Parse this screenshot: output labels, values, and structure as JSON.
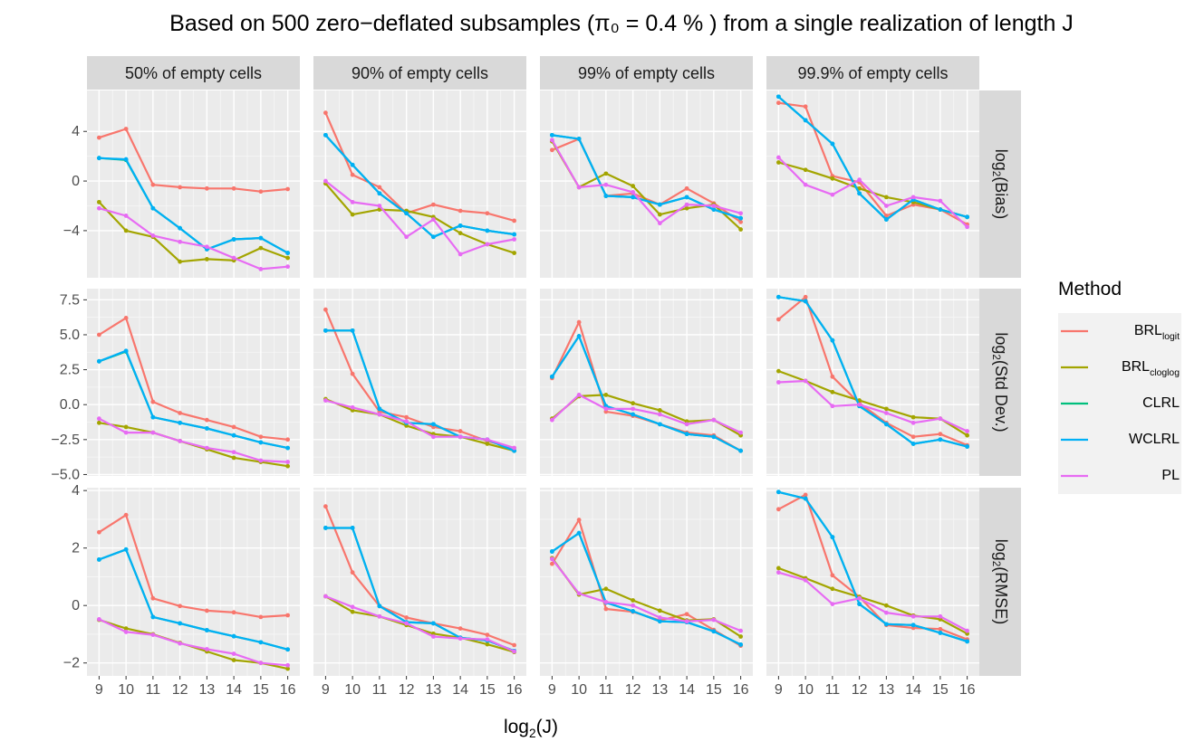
{
  "chart_data": {
    "type": "line",
    "title": "Based on 500 zero−deflated subsamples (π₀ = 0.4 % ) from a single realization of length J",
    "xlabel": "log₂(J)",
    "x": [
      9,
      10,
      11,
      12,
      13,
      14,
      15,
      16
    ],
    "columns": [
      "50% of empty cells",
      "90% of empty cells",
      "99% of empty cells",
      "99.9% of empty cells"
    ],
    "rows": [
      {
        "key": "bias",
        "label": "log₂(Bias)",
        "ylim": [
          -7.8,
          7.3
        ],
        "ticks": [
          4,
          0,
          -4
        ],
        "tick_labels": [
          "4",
          "0",
          "−4"
        ]
      },
      {
        "key": "sd",
        "label": "log₂(Std Dev.)",
        "ylim": [
          -5.1,
          8.3
        ],
        "ticks": [
          7.5,
          5.0,
          2.5,
          0.0,
          -2.5,
          -5.0
        ],
        "tick_labels": [
          "7.5",
          "5.0",
          "2.5",
          "0.0",
          "−2.5",
          "−5.0"
        ]
      },
      {
        "key": "rmse",
        "label": "log₂(RMSE)",
        "ylim": [
          -2.45,
          4.1
        ],
        "ticks": [
          4,
          2,
          0,
          -2
        ],
        "tick_labels": [
          "4",
          "2",
          "0",
          "−2"
        ]
      }
    ],
    "legend": {
      "title": "Method",
      "position": "right"
    },
    "methods": [
      {
        "name": "BRL",
        "sub": "logit",
        "color": "#F8766D"
      },
      {
        "name": "BRL",
        "sub": "cloglog",
        "color": "#A3A500"
      },
      {
        "name": "CLRL",
        "sub": "",
        "color": "#00BF7D"
      },
      {
        "name": "WCLRL",
        "sub": "",
        "color": "#00B0F6"
      },
      {
        "name": "PL",
        "sub": "",
        "color": "#E76BF3"
      }
    ],
    "grid": true,
    "series": {
      "bias": [
        [
          [
            3.5,
            4.2,
            -0.3,
            -0.5,
            -0.6,
            -0.6,
            -0.85,
            -0.65
          ],
          [
            -1.7,
            -4.0,
            -4.5,
            -6.5,
            -6.3,
            -6.4,
            -5.4,
            -6.2
          ],
          [
            1.85,
            1.7,
            -2.2,
            -3.8,
            -5.5,
            -4.7,
            -4.6,
            -5.8
          ],
          [
            1.85,
            1.75,
            -2.2,
            -3.8,
            -5.5,
            -4.7,
            -4.6,
            -5.8
          ],
          [
            -2.2,
            -2.8,
            -4.4,
            -4.9,
            -5.3,
            -6.2,
            -7.1,
            -6.9
          ]
        ],
        [
          [
            5.5,
            0.5,
            -0.5,
            -2.6,
            -1.9,
            -2.4,
            -2.6,
            -3.2
          ],
          [
            -0.2,
            -2.7,
            -2.3,
            -2.4,
            -2.9,
            -4.2,
            -5.1,
            -5.8
          ],
          [
            3.7,
            1.3,
            -1.0,
            -2.6,
            -4.5,
            -3.6,
            -4.0,
            -4.3
          ],
          [
            3.7,
            1.3,
            -1.0,
            -2.6,
            -4.5,
            -3.6,
            -4.0,
            -4.3
          ],
          [
            0.0,
            -1.7,
            -2.0,
            -4.5,
            -3.1,
            -5.9,
            -5.1,
            -4.7
          ]
        ],
        [
          [
            2.5,
            3.4,
            -1.2,
            -1.0,
            -1.9,
            -0.6,
            -1.8,
            -3.3
          ],
          [
            3.2,
            -0.5,
            0.6,
            -0.4,
            -2.7,
            -2.2,
            -1.9,
            -3.9
          ],
          [
            3.7,
            3.4,
            -1.2,
            -1.3,
            -1.9,
            -1.3,
            -2.3,
            -3.0
          ],
          [
            3.7,
            3.4,
            -1.2,
            -1.3,
            -1.9,
            -1.3,
            -2.3,
            -3.0
          ],
          [
            3.3,
            -0.5,
            -0.3,
            -0.9,
            -3.4,
            -1.9,
            -2.0,
            -2.6
          ]
        ],
        [
          [
            6.3,
            6.0,
            0.4,
            -0.1,
            -2.8,
            -1.9,
            -2.3,
            -3.5
          ],
          [
            1.5,
            0.9,
            0.2,
            -0.6,
            -1.3,
            -1.7,
            -2.3,
            -2.9
          ],
          [
            6.8,
            4.9,
            3.0,
            -1.0,
            -3.1,
            -1.5,
            -2.3,
            -2.9
          ],
          [
            6.8,
            4.9,
            3.0,
            -1.0,
            -3.1,
            -1.5,
            -2.3,
            -2.9
          ],
          [
            1.9,
            -0.3,
            -1.1,
            0.1,
            -2.0,
            -1.3,
            -1.6,
            -3.7
          ]
        ]
      ],
      "sd": [
        [
          [
            5.0,
            6.2,
            0.2,
            -0.6,
            -1.1,
            -1.6,
            -2.3,
            -2.5
          ],
          [
            -1.3,
            -1.6,
            -2.0,
            -2.6,
            -3.2,
            -3.8,
            -4.1,
            -4.4
          ],
          [
            3.1,
            3.8,
            -0.9,
            -1.3,
            -1.7,
            -2.2,
            -2.7,
            -3.1
          ],
          [
            3.1,
            3.85,
            -0.9,
            -1.3,
            -1.7,
            -2.2,
            -2.7,
            -3.1
          ],
          [
            -1.0,
            -2.0,
            -2.0,
            -2.6,
            -3.1,
            -3.4,
            -4.0,
            -4.1
          ]
        ],
        [
          [
            6.8,
            2.2,
            -0.5,
            -0.9,
            -1.6,
            -1.9,
            -2.6,
            -3.1
          ],
          [
            0.4,
            -0.4,
            -0.7,
            -1.5,
            -2.1,
            -2.3,
            -2.8,
            -3.3
          ],
          [
            5.3,
            5.3,
            -0.3,
            -1.3,
            -1.4,
            -2.3,
            -2.5,
            -3.3
          ],
          [
            5.3,
            5.3,
            -0.3,
            -1.3,
            -1.4,
            -2.3,
            -2.5,
            -3.3
          ],
          [
            0.3,
            -0.2,
            -0.7,
            -1.2,
            -2.3,
            -2.3,
            -2.5,
            -3.1
          ]
        ],
        [
          [
            1.9,
            5.9,
            -0.5,
            -0.8,
            -1.4,
            -2.0,
            -2.2,
            -3.3
          ],
          [
            -1.0,
            0.6,
            0.7,
            0.1,
            -0.4,
            -1.2,
            -1.1,
            -2.2
          ],
          [
            2.0,
            4.9,
            -0.1,
            -0.7,
            -1.4,
            -2.1,
            -2.3,
            -3.3
          ],
          [
            2.0,
            4.9,
            -0.1,
            -0.7,
            -1.4,
            -2.1,
            -2.3,
            -3.3
          ],
          [
            -1.1,
            0.7,
            -0.3,
            -0.3,
            -0.7,
            -1.4,
            -1.1,
            -2.0
          ]
        ],
        [
          [
            6.1,
            7.7,
            2.0,
            0.1,
            -1.3,
            -2.3,
            -2.1,
            -2.9
          ],
          [
            2.4,
            1.7,
            0.9,
            0.3,
            -0.3,
            -0.9,
            -1.0,
            -2.2
          ],
          [
            7.7,
            7.4,
            4.6,
            -0.1,
            -1.4,
            -2.8,
            -2.5,
            -3.0
          ],
          [
            7.7,
            7.4,
            4.6,
            -0.1,
            -1.4,
            -2.8,
            -2.5,
            -3.0
          ],
          [
            1.6,
            1.7,
            -0.1,
            0.0,
            -0.6,
            -1.3,
            -1.0,
            -1.9
          ]
        ]
      ],
      "rmse": [
        [
          [
            2.55,
            3.15,
            0.25,
            -0.02,
            -0.18,
            -0.24,
            -0.4,
            -0.34
          ],
          [
            -0.5,
            -0.8,
            -1.0,
            -1.3,
            -1.6,
            -1.9,
            -2.0,
            -2.2
          ],
          [
            1.6,
            1.95,
            -0.4,
            -0.62,
            -0.86,
            -1.07,
            -1.28,
            -1.53
          ],
          [
            1.6,
            1.95,
            -0.4,
            -0.62,
            -0.86,
            -1.07,
            -1.28,
            -1.53
          ],
          [
            -0.48,
            -0.92,
            -1.02,
            -1.32,
            -1.52,
            -1.68,
            -2.0,
            -2.08
          ]
        ],
        [
          [
            3.45,
            1.15,
            -0.02,
            -0.42,
            -0.62,
            -0.8,
            -1.02,
            -1.38
          ],
          [
            0.32,
            -0.22,
            -0.38,
            -0.68,
            -0.98,
            -1.12,
            -1.35,
            -1.62
          ],
          [
            2.7,
            2.7,
            -0.02,
            -0.58,
            -0.62,
            -1.12,
            -1.22,
            -1.58
          ],
          [
            2.7,
            2.7,
            -0.02,
            -0.58,
            -0.62,
            -1.12,
            -1.22,
            -1.58
          ],
          [
            0.32,
            -0.05,
            -0.38,
            -0.62,
            -1.08,
            -1.15,
            -1.18,
            -1.6
          ]
        ],
        [
          [
            1.45,
            2.98,
            -0.12,
            -0.22,
            -0.52,
            -0.3,
            -0.85,
            -1.4
          ],
          [
            1.65,
            0.38,
            0.58,
            0.18,
            -0.18,
            -0.52,
            -0.48,
            -1.08
          ],
          [
            1.88,
            2.52,
            0.1,
            -0.2,
            -0.55,
            -0.58,
            -0.9,
            -1.36
          ],
          [
            1.88,
            2.52,
            0.1,
            -0.2,
            -0.55,
            -0.58,
            -0.9,
            -1.36
          ],
          [
            1.62,
            0.42,
            0.12,
            0.0,
            -0.42,
            -0.55,
            -0.5,
            -0.88
          ]
        ],
        [
          [
            3.35,
            3.85,
            1.05,
            0.3,
            -0.68,
            -0.78,
            -0.82,
            -1.18
          ],
          [
            1.3,
            0.95,
            0.58,
            0.3,
            0.0,
            -0.35,
            -0.48,
            -0.98
          ],
          [
            3.95,
            3.72,
            2.38,
            0.05,
            -0.65,
            -0.68,
            -0.95,
            -1.25
          ],
          [
            3.95,
            3.72,
            2.38,
            0.05,
            -0.65,
            -0.68,
            -0.95,
            -1.25
          ],
          [
            1.15,
            0.88,
            0.05,
            0.25,
            -0.25,
            -0.38,
            -0.38,
            -0.88
          ]
        ]
      ]
    }
  }
}
